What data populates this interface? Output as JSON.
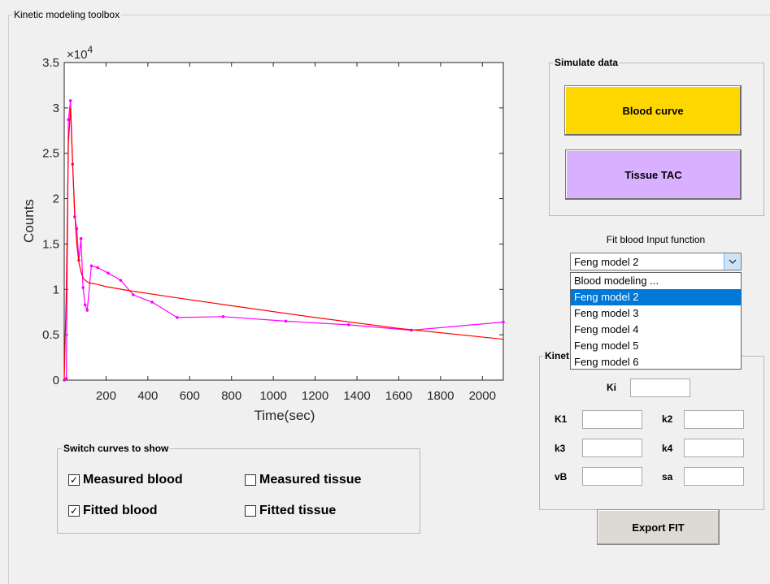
{
  "window": {
    "title": "Kinetic modeling toolbox"
  },
  "simulate": {
    "title": "Simulate data",
    "blood_button": "Blood curve",
    "tissue_button": "Tissue TAC",
    "blood_color": "#ffd700",
    "tissue_color": "#d9b0ff"
  },
  "fit": {
    "label": "Fit blood Input function",
    "selected": "Feng model 2",
    "options": [
      "Blood modeling ...",
      "Feng model 2",
      "Feng model 3",
      "Feng model 4",
      "Feng model 5",
      "Feng model 6"
    ],
    "selected_index": 1
  },
  "kinetic": {
    "title_visible": "Kinet",
    "params": {
      "Ki": "",
      "K1": "",
      "k2": "",
      "k3": "",
      "k4": "",
      "vB": "",
      "sa": ""
    },
    "labels": {
      "Ki": "Ki",
      "K1": "K1",
      "k2": "k2",
      "k3": "k3",
      "k4": "k4",
      "vB": "vB",
      "sa": "sa"
    }
  },
  "switch": {
    "title": "Switch curves to show",
    "measured_blood": {
      "label": "Measured blood",
      "checked": true
    },
    "measured_tissue": {
      "label": "Measured tissue",
      "checked": false
    },
    "fitted_blood": {
      "label": "Fitted blood",
      "checked": true
    },
    "fitted_tissue": {
      "label": "Fitted tissue",
      "checked": false
    }
  },
  "export_button": "Export FIT",
  "chart_data": {
    "type": "line",
    "xlabel": "Time(sec)",
    "ylabel": "Counts",
    "exponent_label": "×10",
    "exponent_power": "4",
    "xlim": [
      0,
      2100
    ],
    "ylim": [
      0,
      3.5
    ],
    "xticks": [
      200,
      400,
      600,
      800,
      1000,
      1200,
      1400,
      1600,
      1800,
      2000
    ],
    "yticks": [
      0,
      0.5,
      1,
      1.5,
      2,
      2.5,
      3,
      3.5
    ],
    "ytick_labels": [
      "0",
      "0.5",
      "1",
      "1.5",
      "2",
      "2.5",
      "3",
      "3.5"
    ],
    "series": [
      {
        "color": "#ff00ff",
        "marker": true,
        "x": [
          0,
          10,
          20,
          30,
          40,
          50,
          60,
          70,
          80,
          90,
          100,
          110,
          130,
          160,
          210,
          270,
          330,
          420,
          540,
          760,
          1060,
          1360,
          1660,
          2100
        ],
        "y": [
          0.0,
          0.02,
          2.87,
          3.08,
          2.38,
          1.8,
          1.67,
          1.32,
          1.56,
          1.02,
          0.83,
          0.77,
          1.26,
          1.24,
          1.18,
          1.1,
          0.94,
          0.86,
          0.69,
          0.7,
          0.65,
          0.61,
          0.55,
          0.64
        ]
      },
      {
        "color": "#ff0000",
        "marker": false,
        "x": [
          0,
          10,
          20,
          30,
          40,
          50,
          60,
          70,
          80,
          90,
          100,
          120,
          150,
          200,
          300,
          500,
          800,
          1200,
          1600,
          2100
        ],
        "y": [
          0,
          1.0,
          2.6,
          3.0,
          2.4,
          1.85,
          1.5,
          1.3,
          1.19,
          1.13,
          1.1,
          1.07,
          1.06,
          1.03,
          0.99,
          0.92,
          0.82,
          0.69,
          0.57,
          0.45
        ]
      }
    ]
  }
}
